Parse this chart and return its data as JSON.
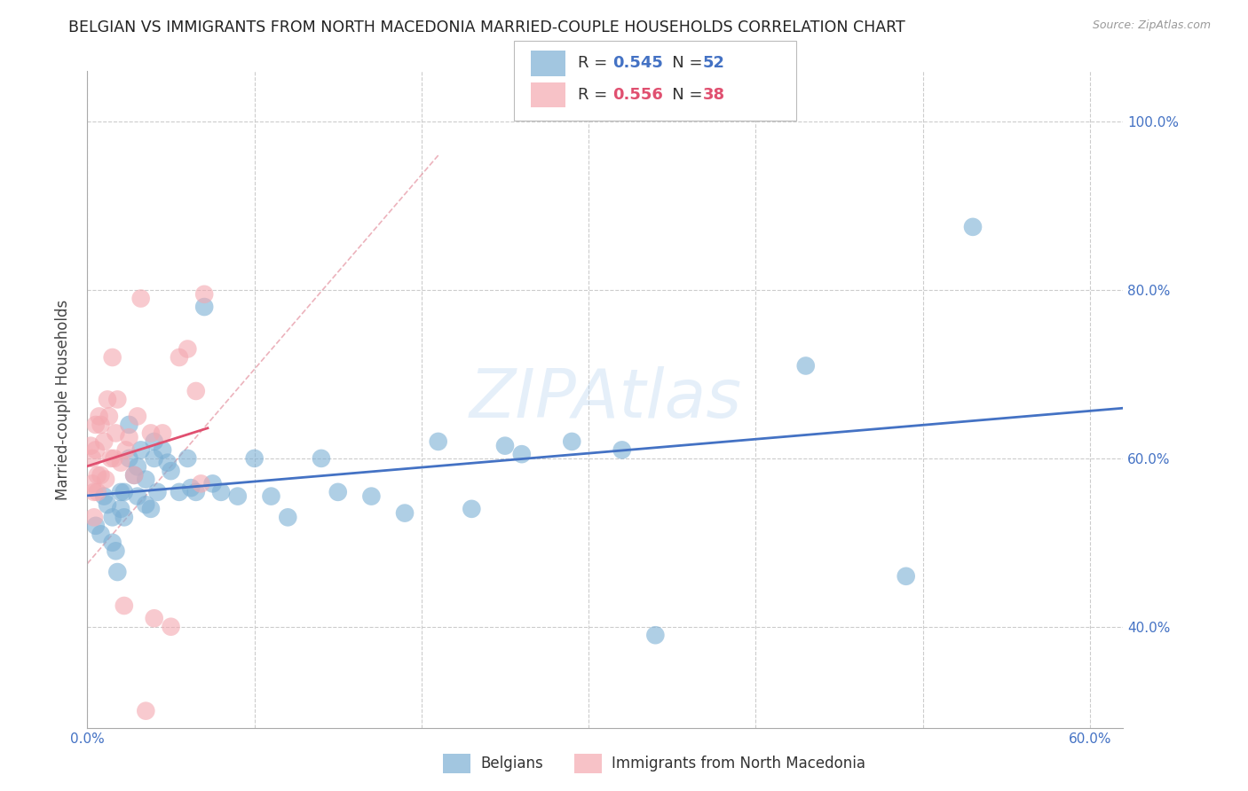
{
  "title": "BELGIAN VS IMMIGRANTS FROM NORTH MACEDONIA MARRIED-COUPLE HOUSEHOLDS CORRELATION CHART",
  "source": "Source: ZipAtlas.com",
  "ylabel": "Married-couple Households",
  "xlim": [
    0.0,
    0.62
  ],
  "ylim": [
    0.28,
    1.06
  ],
  "x_ticks": [
    0.0,
    0.1,
    0.2,
    0.3,
    0.4,
    0.5,
    0.6
  ],
  "x_tick_labels": [
    "0.0%",
    "",
    "",
    "",
    "",
    "",
    "60.0%"
  ],
  "y_ticks": [
    0.4,
    0.6,
    0.8,
    1.0
  ],
  "y_tick_labels": [
    "40.0%",
    "60.0%",
    "80.0%",
    "100.0%"
  ],
  "blue_R": 0.545,
  "blue_N": 52,
  "pink_R": 0.556,
  "pink_N": 38,
  "blue_color": "#7BAFD4",
  "pink_color": "#F4A8B0",
  "blue_line_color": "#4472C4",
  "pink_line_color": "#E05070",
  "diag_color": "#E08090",
  "legend_label_blue": "Belgians",
  "legend_label_pink": "Immigrants from North Macedonia",
  "watermark": "ZIPAtlas",
  "blue_scatter_x": [
    0.005,
    0.008,
    0.01,
    0.012,
    0.015,
    0.015,
    0.017,
    0.018,
    0.02,
    0.02,
    0.022,
    0.022,
    0.025,
    0.025,
    0.028,
    0.03,
    0.03,
    0.032,
    0.035,
    0.035,
    0.038,
    0.04,
    0.04,
    0.042,
    0.045,
    0.048,
    0.05,
    0.055,
    0.06,
    0.062,
    0.065,
    0.07,
    0.075,
    0.08,
    0.09,
    0.1,
    0.11,
    0.12,
    0.14,
    0.15,
    0.17,
    0.19,
    0.21,
    0.23,
    0.25,
    0.26,
    0.29,
    0.32,
    0.34,
    0.43,
    0.49,
    0.53
  ],
  "blue_scatter_y": [
    0.52,
    0.51,
    0.555,
    0.545,
    0.53,
    0.5,
    0.49,
    0.465,
    0.56,
    0.54,
    0.56,
    0.53,
    0.64,
    0.6,
    0.58,
    0.59,
    0.555,
    0.61,
    0.575,
    0.545,
    0.54,
    0.62,
    0.6,
    0.56,
    0.61,
    0.595,
    0.585,
    0.56,
    0.6,
    0.565,
    0.56,
    0.78,
    0.57,
    0.56,
    0.555,
    0.6,
    0.555,
    0.53,
    0.6,
    0.56,
    0.555,
    0.535,
    0.62,
    0.54,
    0.615,
    0.605,
    0.62,
    0.61,
    0.39,
    0.71,
    0.46,
    0.875
  ],
  "pink_scatter_x": [
    0.002,
    0.003,
    0.003,
    0.004,
    0.004,
    0.005,
    0.005,
    0.006,
    0.006,
    0.007,
    0.008,
    0.008,
    0.01,
    0.011,
    0.012,
    0.013,
    0.014,
    0.015,
    0.016,
    0.017,
    0.018,
    0.02,
    0.022,
    0.023,
    0.025,
    0.028,
    0.03,
    0.032,
    0.035,
    0.038,
    0.04,
    0.045,
    0.05,
    0.055,
    0.06,
    0.065,
    0.068,
    0.07
  ],
  "pink_scatter_y": [
    0.615,
    0.6,
    0.57,
    0.56,
    0.53,
    0.64,
    0.61,
    0.58,
    0.56,
    0.65,
    0.64,
    0.58,
    0.62,
    0.575,
    0.67,
    0.65,
    0.6,
    0.72,
    0.6,
    0.63,
    0.67,
    0.595,
    0.425,
    0.61,
    0.625,
    0.58,
    0.65,
    0.79,
    0.3,
    0.63,
    0.41,
    0.63,
    0.4,
    0.72,
    0.73,
    0.68,
    0.57,
    0.795
  ],
  "grid_color": "#CCCCCC",
  "background_color": "#FFFFFF",
  "title_fontsize": 12.5,
  "axis_label_fontsize": 12,
  "tick_label_color": "#4472C4",
  "tick_label_fontsize": 11
}
